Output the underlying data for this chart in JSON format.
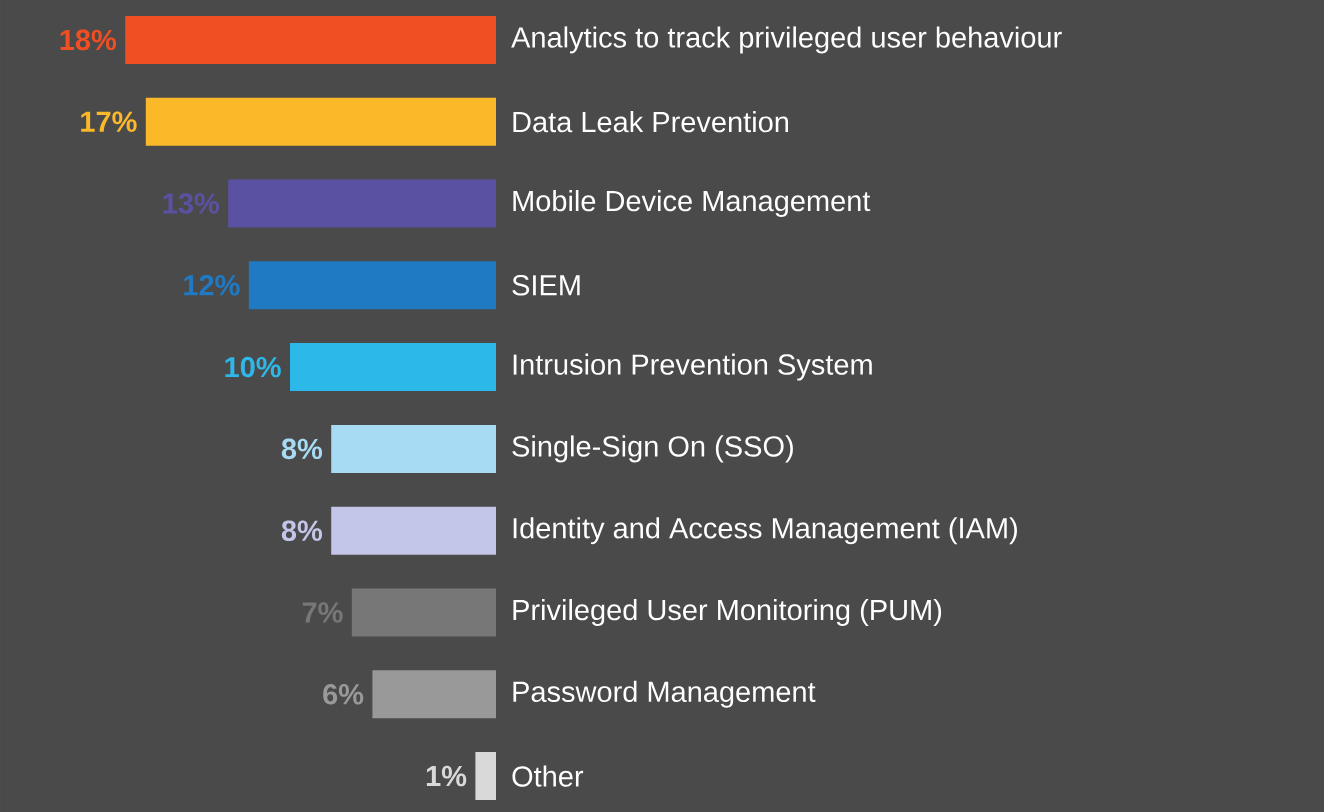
{
  "chart_data": {
    "type": "bar",
    "orientation": "horizontal",
    "categories": [
      "Analytics to track privileged user behaviour",
      "Data Leak Prevention",
      "Mobile Device Management",
      "SIEM",
      "Intrusion Prevention System",
      "Single-Sign On (SSO)",
      "Identity and Access Management (IAM)",
      "Privileged User Monitoring (PUM)",
      "Password Management",
      "Other"
    ],
    "values": [
      18,
      17,
      13,
      12,
      10,
      8,
      8,
      7,
      6,
      1
    ],
    "colors": [
      "#f04e23",
      "#fbb829",
      "#5b51a3",
      "#1f7ac3",
      "#2db8ea",
      "#a6dbf3",
      "#c3c6e8",
      "#777777",
      "#999999",
      "#d9d9d9"
    ],
    "value_labels": [
      "18%",
      "17%",
      "13%",
      "12%",
      "10%",
      "8%",
      "8%",
      "7%",
      "6%",
      "1%"
    ]
  }
}
